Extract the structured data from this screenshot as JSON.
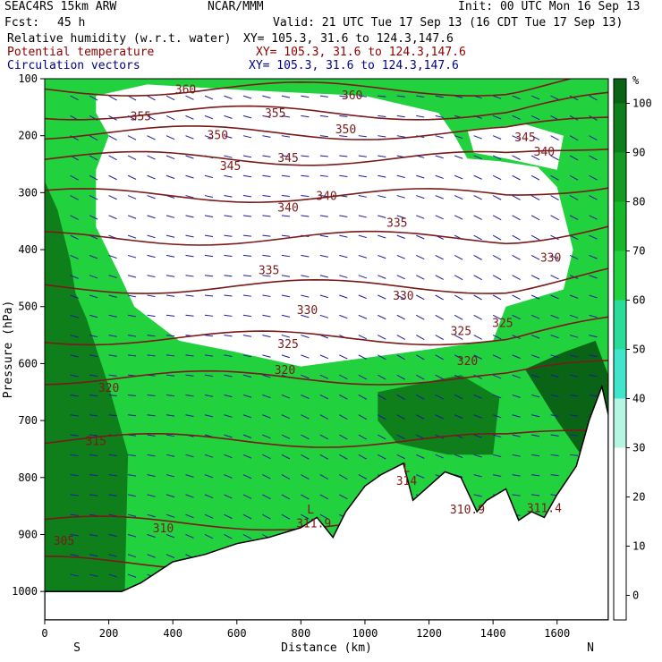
{
  "header": {
    "model": "SEAC4RS 15km ARW",
    "org": "NCAR/MMM",
    "init": "Init: 00 UTC Mon 16 Sep 13",
    "fcst_label": "Fcst:",
    "fcst_value": "45 h",
    "valid": "Valid: 21 UTC Tue 17 Sep 13 (16 CDT Tue 17 Sep 13)",
    "fields": [
      {
        "name": "Relative humidity (w.r.t. water)",
        "xy": "XY= 105.3, 31.6 to 124.3,147.6",
        "color": "#000000"
      },
      {
        "name": "Potential temperature",
        "xy": "XY= 105.3, 31.6 to 124.3,147.6",
        "color": "#8b0000"
      },
      {
        "name": "Circulation vectors",
        "xy": "XY= 105.3, 31.6 to 124.3,147.6",
        "color": "#00008b"
      }
    ]
  },
  "chart_data": {
    "type": "heatmap",
    "xlabel": "Distance (km)",
    "ylabel": "Pressure (hPa)",
    "x_ticks": [
      0,
      200,
      400,
      600,
      800,
      1000,
      1200,
      1400,
      1600
    ],
    "y_ticks": [
      100,
      200,
      300,
      400,
      500,
      600,
      700,
      800,
      900,
      1000
    ],
    "xlim": [
      0,
      1760
    ],
    "ylim": [
      1050,
      100
    ],
    "x_end_labels": {
      "left": "S",
      "right": "N"
    },
    "colorbar": {
      "unit": "%",
      "ticks": [
        0,
        10,
        20,
        30,
        40,
        50,
        60,
        70,
        80,
        90,
        100
      ],
      "levels": [
        -5,
        0,
        10,
        20,
        30,
        40,
        50,
        60,
        70,
        80,
        90,
        100,
        105
      ],
      "colors": [
        "#ffffff",
        "#ffffff",
        "#ffffff",
        "#ffffff",
        "#b5f5e1",
        "#3fe6cc",
        "#28dc9a",
        "#22d13e",
        "#15b829",
        "#129c22",
        "#0f7f1b",
        "#0a6415"
      ]
    },
    "rh_colors": {
      "dry": "#ffffff",
      "moist": "#22d13e",
      "very_moist": "#0f7f1b",
      "wettest": "#0a6415"
    },
    "theta_labels": [
      {
        "text": "360",
        "x": 440,
        "p": 118
      },
      {
        "text": "360",
        "x": 960,
        "p": 128
      },
      {
        "text": "355",
        "x": 300,
        "p": 165
      },
      {
        "text": "355",
        "x": 720,
        "p": 160
      },
      {
        "text": "350",
        "x": 540,
        "p": 198
      },
      {
        "text": "350",
        "x": 940,
        "p": 188
      },
      {
        "text": "345",
        "x": 580,
        "p": 252
      },
      {
        "text": "345",
        "x": 760,
        "p": 238
      },
      {
        "text": "345",
        "x": 1500,
        "p": 202
      },
      {
        "text": "340",
        "x": 1560,
        "p": 227
      },
      {
        "text": "340",
        "x": 760,
        "p": 325
      },
      {
        "text": "340",
        "x": 880,
        "p": 305
      },
      {
        "text": "335",
        "x": 1100,
        "p": 352
      },
      {
        "text": "335",
        "x": 700,
        "p": 435
      },
      {
        "text": "330",
        "x": 1580,
        "p": 413
      },
      {
        "text": "330",
        "x": 1120,
        "p": 480
      },
      {
        "text": "330",
        "x": 820,
        "p": 505
      },
      {
        "text": "325",
        "x": 1300,
        "p": 542
      },
      {
        "text": "325",
        "x": 1430,
        "p": 528
      },
      {
        "text": "325",
        "x": 760,
        "p": 565
      },
      {
        "text": "320",
        "x": 200,
        "p": 642
      },
      {
        "text": "320",
        "x": 750,
        "p": 610
      },
      {
        "text": "320",
        "x": 1320,
        "p": 595
      },
      {
        "text": "315",
        "x": 160,
        "p": 735
      },
      {
        "text": "310",
        "x": 370,
        "p": 888
      },
      {
        "text": "305",
        "x": 60,
        "p": 910
      }
    ],
    "point_labels": [
      {
        "text": "L",
        "x": 830,
        "p": 855
      },
      {
        "text": "311.9",
        "x": 840,
        "p": 880
      },
      {
        "text": "L",
        "x": 1130,
        "p": 782
      },
      {
        "text": "314",
        "x": 1130,
        "p": 805
      },
      {
        "text": "310.9",
        "x": 1320,
        "p": 855
      },
      {
        "text": "311.4",
        "x": 1560,
        "p": 853
      }
    ],
    "terrain": [
      [
        0,
        1000
      ],
      [
        240,
        1000
      ],
      [
        300,
        985
      ],
      [
        400,
        948
      ],
      [
        500,
        935
      ],
      [
        600,
        916
      ],
      [
        700,
        905
      ],
      [
        800,
        888
      ],
      [
        850,
        870
      ],
      [
        900,
        905
      ],
      [
        940,
        860
      ],
      [
        1000,
        815
      ],
      [
        1050,
        795
      ],
      [
        1120,
        775
      ],
      [
        1150,
        840
      ],
      [
        1200,
        815
      ],
      [
        1250,
        790
      ],
      [
        1300,
        800
      ],
      [
        1350,
        860
      ],
      [
        1380,
        840
      ],
      [
        1440,
        820
      ],
      [
        1480,
        875
      ],
      [
        1520,
        860
      ],
      [
        1560,
        870
      ],
      [
        1600,
        830
      ],
      [
        1660,
        780
      ],
      [
        1700,
        700
      ],
      [
        1740,
        640
      ],
      [
        1760,
        690
      ]
    ]
  }
}
